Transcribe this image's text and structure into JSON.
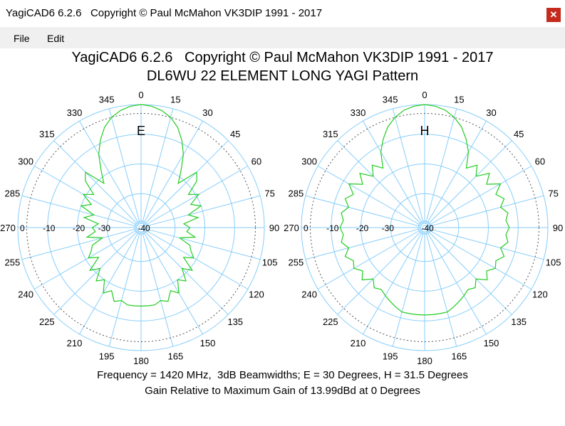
{
  "window": {
    "title": "YagiCAD6 6.2.6   Copyright © Paul McMahon VK3DIP 1991 - 2017",
    "close_icon": "close-icon"
  },
  "menu": {
    "items": [
      "File",
      "Edit"
    ]
  },
  "header": {
    "line1": "YagiCAD6 6.2.6   Copyright © Paul McMahon VK3DIP 1991 - 2017",
    "line2": "DL6WU 22 ELEMENT LONG YAGI Pattern"
  },
  "footer": {
    "line1": "Frequency = 1420 MHz,  3dB Beamwidths; E = 30 Degrees, H = 31.5 Degrees",
    "line2": "Gain Relative to Maximum Gain of 13.99dBd at 0 Degrees"
  },
  "colors": {
    "grid": "#87cefa",
    "pattern": "#22cc22",
    "halfpower": "#555555",
    "close_bg": "#c42b1c"
  },
  "chart_data": [
    {
      "type": "polar",
      "plane_label": "E",
      "angle_labels": [
        "0",
        "15",
        "30",
        "45",
        "60",
        "75",
        "90",
        "105",
        "120",
        "135",
        "150",
        "165",
        "180",
        "195",
        "210",
        "225",
        "240",
        "255",
        "270",
        "285",
        "300",
        "315",
        "330",
        "345"
      ],
      "ring_labels": [
        "0",
        "-10",
        "-20",
        "-30",
        "-40"
      ],
      "rings_db": [
        0,
        -10,
        -20,
        -30,
        -40
      ],
      "halfpower_ring_db": -3,
      "beamwidth_3db_deg": 30,
      "pattern_db": {
        "angles": [
          0,
          5,
          10,
          15,
          20,
          25,
          30,
          35,
          40,
          45,
          50,
          55,
          60,
          65,
          70,
          75,
          80,
          85,
          90,
          95,
          100,
          105,
          110,
          115,
          120,
          125,
          130,
          135,
          140,
          145,
          150,
          155,
          160,
          165,
          170,
          175,
          180,
          185,
          190,
          195,
          200,
          205,
          210,
          215,
          220,
          225,
          230,
          235,
          240,
          245,
          250,
          255,
          260,
          265,
          270,
          275,
          280,
          285,
          290,
          295,
          300,
          305,
          310,
          315,
          320,
          325,
          330,
          335,
          340,
          345,
          350,
          355
        ],
        "values": [
          0,
          -0.4,
          -1.4,
          -3,
          -5.5,
          -9,
          -13,
          -18,
          -22,
          -15,
          -17,
          -22,
          -19,
          -23,
          -20,
          -25,
          -22,
          -27,
          -25,
          -26,
          -23,
          -28,
          -24,
          -23,
          -21,
          -24,
          -19,
          -22,
          -18,
          -20,
          -16,
          -18,
          -15,
          -16,
          -15,
          -15,
          -15,
          -15,
          -15,
          -16,
          -15,
          -18,
          -16,
          -20,
          -18,
          -22,
          -19,
          -24,
          -21,
          -23,
          -24,
          -28,
          -23,
          -26,
          -25,
          -27,
          -22,
          -25,
          -20,
          -23,
          -19,
          -22,
          -17,
          -15,
          -22,
          -18,
          -13,
          -9,
          -5.5,
          -3,
          -1.4,
          -0.4
        ]
      }
    },
    {
      "type": "polar",
      "plane_label": "H",
      "angle_labels": [
        "0",
        "15",
        "30",
        "45",
        "60",
        "75",
        "90",
        "105",
        "120",
        "135",
        "150",
        "165",
        "180",
        "195",
        "210",
        "225",
        "240",
        "255",
        "270",
        "285",
        "300",
        "315",
        "330",
        "345"
      ],
      "ring_labels": [
        "0",
        "-10",
        "-20",
        "-30",
        "-40"
      ],
      "rings_db": [
        0,
        -10,
        -20,
        -30,
        -40
      ],
      "halfpower_ring_db": -3,
      "beamwidth_3db_deg": 31.5,
      "pattern_db": {
        "angles": [
          0,
          5,
          10,
          15,
          20,
          25,
          30,
          35,
          40,
          45,
          50,
          55,
          60,
          65,
          70,
          75,
          80,
          85,
          90,
          95,
          100,
          105,
          110,
          115,
          120,
          125,
          130,
          135,
          140,
          145,
          150,
          155,
          160,
          165,
          170,
          175,
          180,
          185,
          190,
          195,
          200,
          205,
          210,
          215,
          220,
          225,
          230,
          235,
          240,
          245,
          250,
          255,
          260,
          265,
          270,
          275,
          280,
          285,
          290,
          295,
          300,
          305,
          310,
          315,
          320,
          325,
          330,
          335,
          340,
          345,
          350,
          355
        ],
        "values": [
          0,
          -0.4,
          -1.3,
          -3,
          -5.3,
          -8.5,
          -12,
          -17,
          -14,
          -17,
          -13,
          -16,
          -12,
          -15,
          -13,
          -15,
          -13,
          -14,
          -13,
          -14,
          -13,
          -15,
          -13,
          -15,
          -14,
          -16,
          -14,
          -17,
          -15,
          -16,
          -15,
          -14,
          -13,
          -12,
          -12,
          -12,
          -12,
          -12,
          -12,
          -12,
          -13,
          -14,
          -15,
          -16,
          -15,
          -17,
          -14,
          -16,
          -14,
          -15,
          -13,
          -15,
          -13,
          -14,
          -13,
          -14,
          -13,
          -15,
          -13,
          -15,
          -12,
          -16,
          -13,
          -17,
          -14,
          -17,
          -12,
          -8.5,
          -5.3,
          -3,
          -1.3,
          -0.4
        ]
      }
    }
  ]
}
